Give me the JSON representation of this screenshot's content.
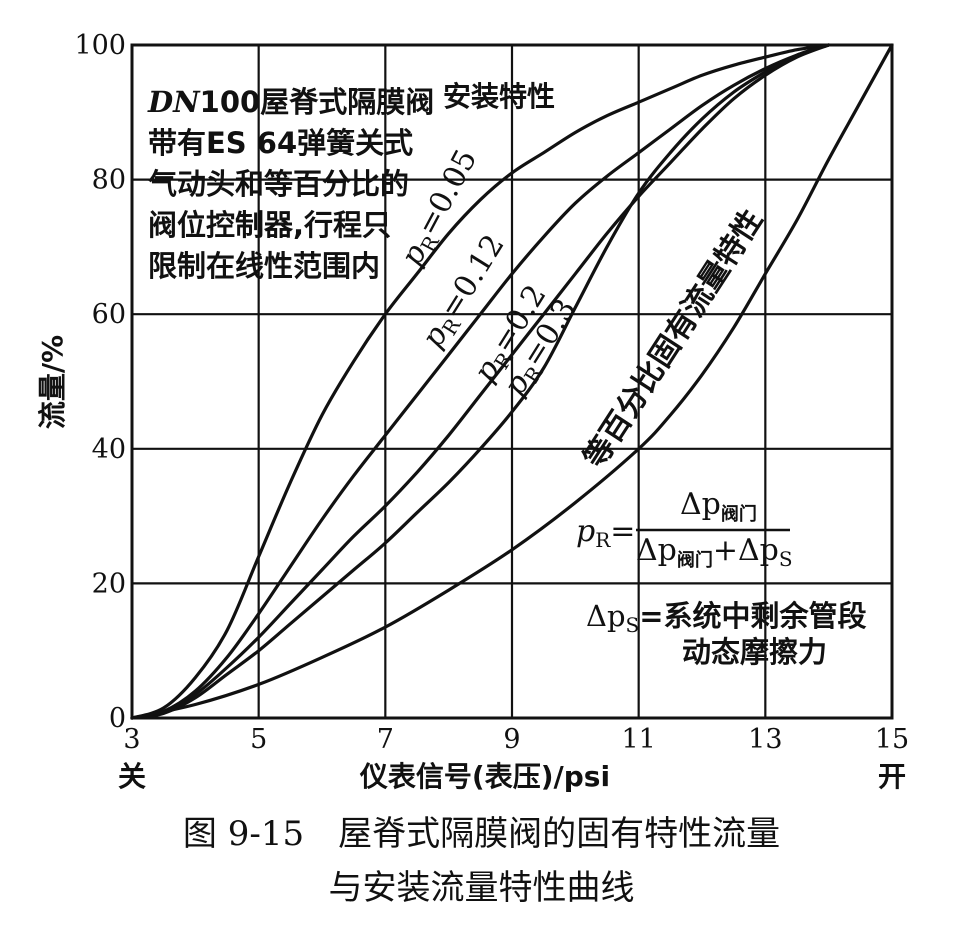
{
  "chart_data": {
    "type": "line",
    "xlabel": "仪表信号(表压)/psi",
    "ylabel": "流量/%",
    "xlim": [
      3,
      15
    ],
    "ylim": [
      0,
      100
    ],
    "x_ticks": [
      3,
      5,
      7,
      9,
      11,
      13,
      15
    ],
    "y_ticks": [
      0,
      20,
      40,
      60,
      80,
      100
    ],
    "x_end_labels": {
      "start": "关",
      "end": "开"
    },
    "grid": true,
    "series": [
      {
        "name": "pR=0.05",
        "label_main": "p",
        "label_sub": "R",
        "label_value": "=0.05",
        "x": [
          3,
          3.5,
          4,
          4.5,
          5,
          5.5,
          6,
          6.5,
          7,
          7.5,
          8,
          8.5,
          9,
          9.5,
          10,
          10.5,
          11,
          11.5,
          12,
          12.5,
          13,
          13.5,
          14
        ],
        "y": [
          0,
          1.5,
          6,
          13,
          24,
          35,
          45,
          53,
          60,
          66,
          72,
          77,
          81,
          84,
          87,
          89.5,
          91.5,
          93.5,
          95.5,
          97,
          98.2,
          99.3,
          100
        ]
      },
      {
        "name": "pR=0.12",
        "label_main": "p",
        "label_sub": "R",
        "label_value": "=0.12",
        "x": [
          3,
          3.5,
          4,
          4.5,
          5,
          5.5,
          6,
          6.5,
          7,
          7.5,
          8,
          8.5,
          9,
          9.5,
          10,
          10.5,
          11,
          11.5,
          12,
          12.5,
          13,
          13.5,
          14
        ],
        "y": [
          0,
          1,
          4,
          9,
          15.5,
          22.5,
          29.5,
          36,
          42,
          48,
          54,
          60,
          66,
          71.5,
          76.5,
          80.5,
          84,
          87.5,
          91,
          94,
          96.5,
          98.5,
          100
        ]
      },
      {
        "name": "pR=0.2",
        "label_main": "p",
        "label_sub": "R",
        "label_value": "=0.2",
        "x": [
          3,
          3.5,
          4,
          4.5,
          5,
          5.5,
          6,
          6.5,
          7,
          7.5,
          8,
          8.5,
          9,
          9.5,
          10,
          10.5,
          11,
          11.5,
          12,
          12.5,
          13,
          13.5,
          14
        ],
        "y": [
          0,
          0.8,
          3.5,
          7.5,
          12,
          17,
          22,
          27,
          31.5,
          36.5,
          42,
          48,
          54,
          60,
          66,
          72,
          77.5,
          82.5,
          87.5,
          92,
          95.5,
          98.2,
          100
        ]
      },
      {
        "name": "pR=0.3",
        "label_main": "p",
        "label_sub": "R",
        "label_value": "=0.3",
        "x": [
          3,
          3.5,
          4,
          4.5,
          5,
          5.5,
          6,
          6.5,
          7,
          7.5,
          8,
          8.5,
          9,
          9.5,
          10,
          10.5,
          11,
          11.5,
          12,
          12.5,
          13,
          13.5,
          14
        ],
        "y": [
          0,
          0.7,
          3,
          6.5,
          10,
          14,
          18,
          22,
          26,
          30.5,
          35,
          40,
          45.5,
          52,
          61,
          70,
          78,
          84,
          89,
          93,
          96,
          98.5,
          100
        ]
      },
      {
        "name": "等百分比固有流量特性",
        "x": [
          3,
          4,
          5,
          6,
          7,
          8,
          9,
          10,
          11,
          11.5,
          12,
          12.5,
          13,
          13.5,
          14,
          14.5,
          15
        ],
        "y": [
          0,
          2,
          5,
          9,
          13.5,
          19,
          25,
          32,
          40,
          45,
          51,
          58,
          66,
          74,
          83,
          91.5,
          100
        ]
      }
    ],
    "annotations": {
      "description": [
        "DN100屋脊式隔膜阀",
        "带有ES 64弹簧关式",
        "气动头和等百分比的",
        "阀位控制器,行程只",
        "限制在线性范围内"
      ],
      "install_label": "安装特性",
      "formula": {
        "lhs_main": "p",
        "lhs_sub": "R",
        "eq": "=",
        "num_delta": "Δp",
        "num_sub": "阀门",
        "den_delta1": "Δp",
        "den_sub1": "阀门",
        "den_plus": "+",
        "den_delta2": "Δp",
        "den_sub2": "S"
      },
      "delta_ps_label_main": "Δp",
      "delta_ps_label_sub": "S",
      "delta_ps_label_rest": "=系统中剩余管段",
      "delta_ps_label_line2": "动态摩擦力"
    }
  },
  "caption": {
    "line1": "图 9-15　屋脊式隔膜阀的固有特性流量",
    "line2": "与安装流量特性曲线"
  }
}
